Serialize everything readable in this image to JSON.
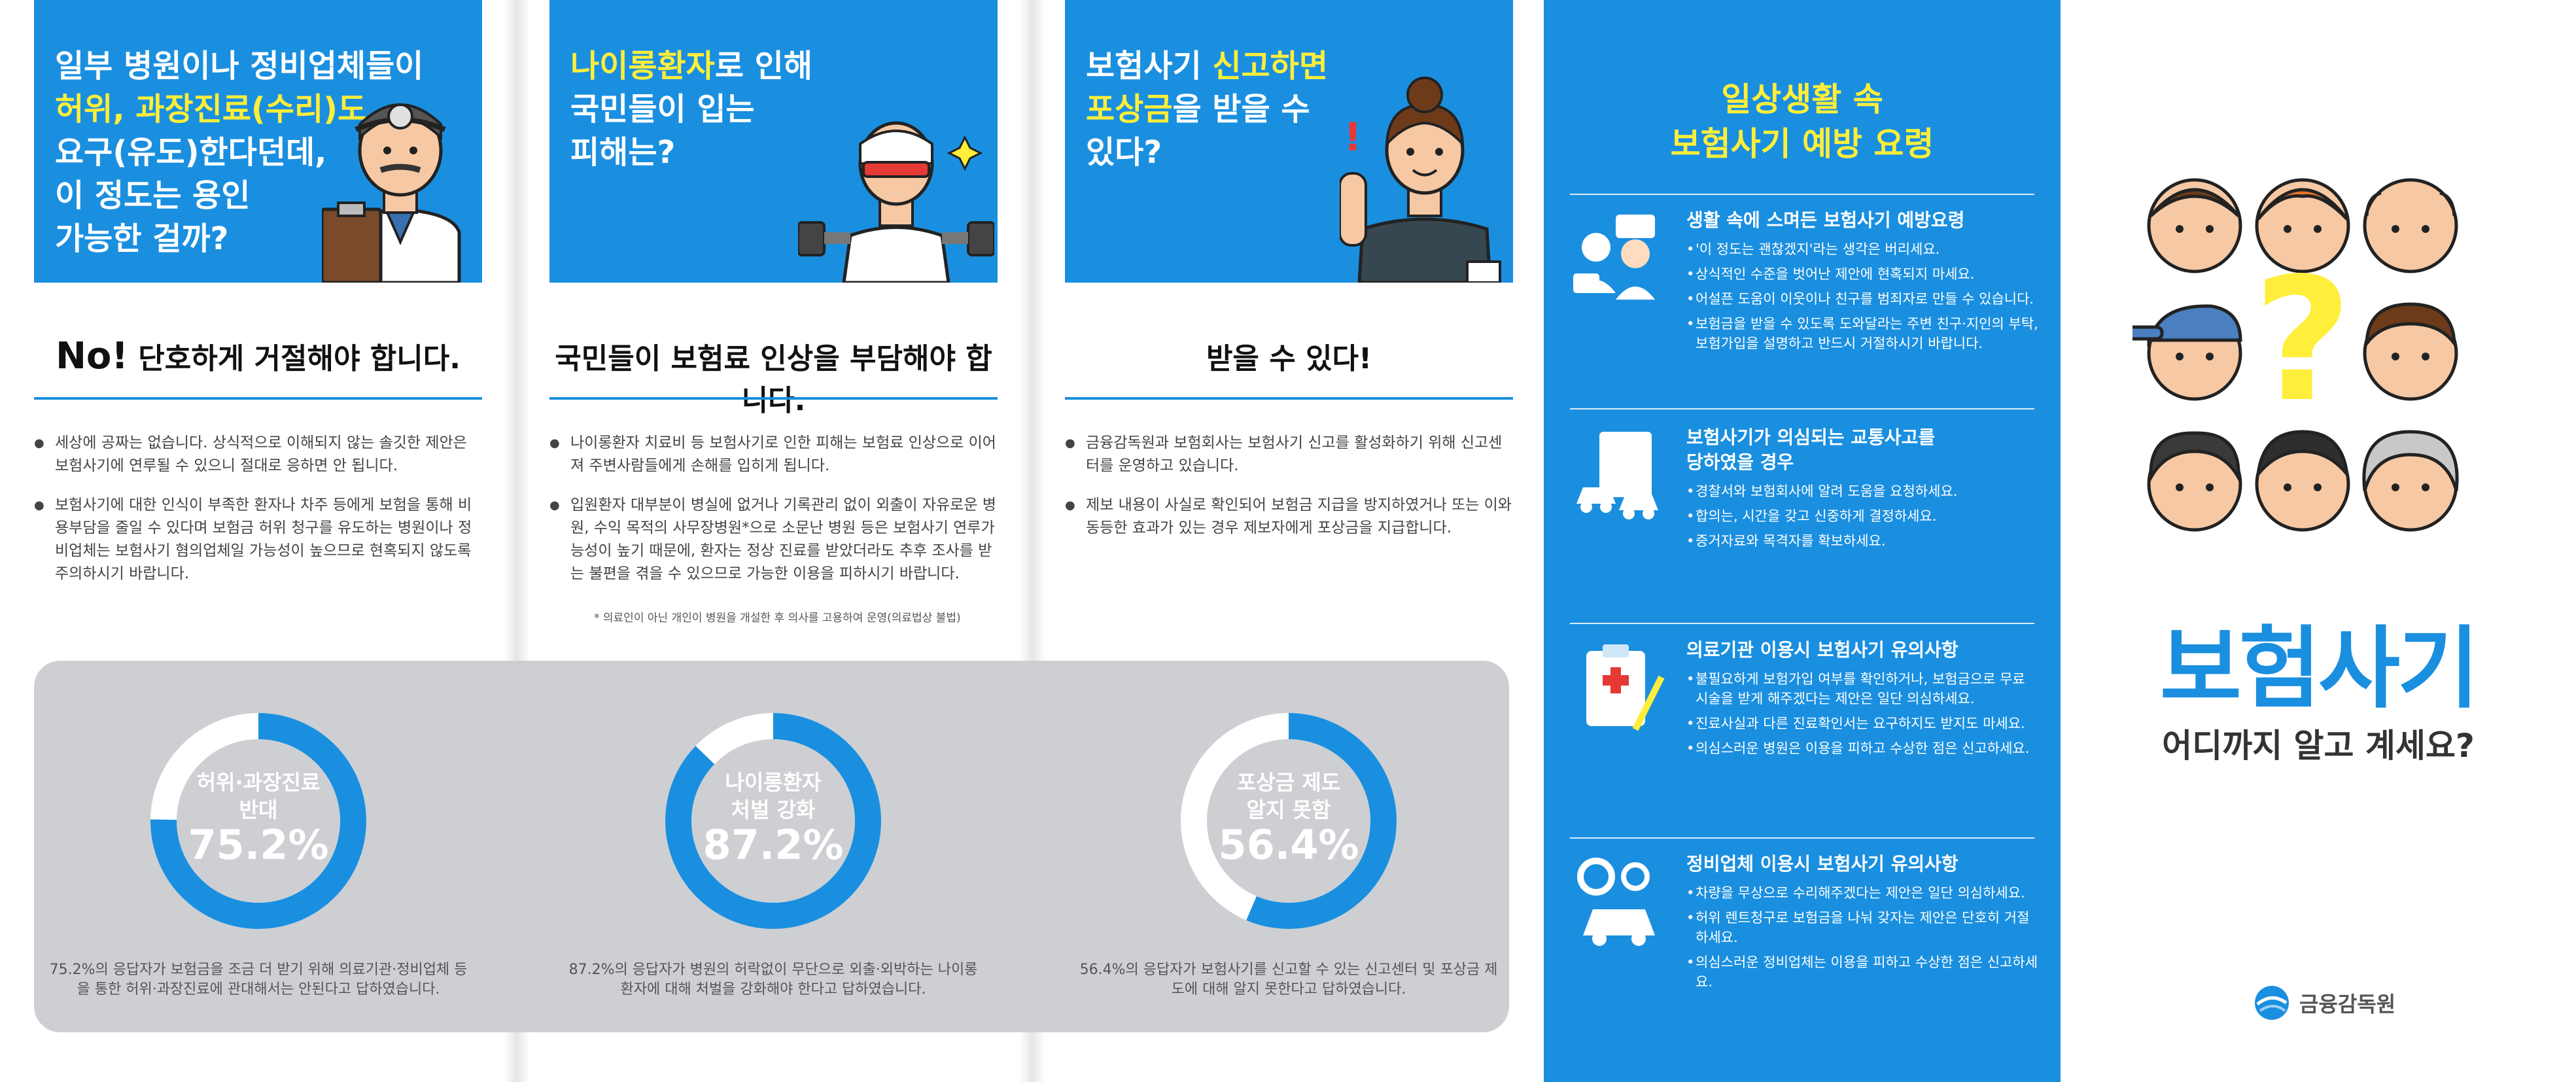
{
  "panel1": {
    "hero_title_lines": [
      "일부 병원이나 정비업체들이",
      "허위, 과장진료(수리)도",
      "요구(유도)한다던데,",
      "이 정도는 용인",
      "가능한 걸까?"
    ],
    "hero_highlight": "허위, 과장진료",
    "subtitle_no": "No!",
    "subtitle": "단호하게 거절해야 합니다.",
    "bullets": [
      "세상에 공짜는 없습니다. 상식적으로 이해되지 않는 솔깃한 제안은 보험사기에 연루될 수 있으니 절대로 응하면 안 됩니다.",
      "보험사기에 대한 인식이 부족한 환자나 차주 등에게 보험을 통해 비용부담을 줄일 수 있다며 보험금 허위 청구를 유도하는 병원이나 정비업체는 보험사기 혐의업체일 가능성이 높으므로 현혹되지 않도록 주의하시기 바랍니다."
    ]
  },
  "panel2": {
    "hero_title_lines": [
      "나이롱환자로 인해",
      "국민들이 입는",
      "피해는?"
    ],
    "hero_highlight": "나이롱환자",
    "subtitle": "국민들이 보험료 인상을 부담해야 합니다.",
    "bullets": [
      "나이롱환자 치료비 등 보험사기로 인한 피해는 보험료 인상으로 이어져 주변사람들에게 손해를 입히게 됩니다.",
      "입원환자 대부분이 병실에 없거나 기록관리 없이 외출이 자유로운 병원, 수익 목적의 사무장병원*으로 소문난 병원 등은 보험사기 연루가능성이 높기 때문에, 환자는 정상 진료를 받았더라도 추후 조사를 받는 불편을 겪을 수 있으므로 가능한 이용을 피하시기 바랍니다."
    ],
    "footnote": "* 의료인이 아닌 개인이 병원을 개설한 후 의사를 고용하여 운영(의료법상 불법)"
  },
  "panel3": {
    "hero_title_lines": [
      "보험사기 신고하면",
      "포상금을 받을 수",
      "있다?"
    ],
    "hero_highlight": "신고하면 포상금",
    "subtitle": "받을 수 있다!",
    "bullets": [
      "금융감독원과 보험회사는 보험사기 신고를 활성화하기 위해 신고센터를 운영하고 있습니다.",
      "제보 내용이 사실로 확인되어 보험금 지급을 방지하였거나 또는 이와 동등한 효과가 있는 경우 제보자에게 포상금을 지급합니다."
    ]
  },
  "stats": [
    {
      "label_lines": [
        "허위·과장진료",
        "반대"
      ],
      "pct_text": "75.2%",
      "value": 75.2,
      "caption": "75.2%의 응답자가 보험금을 조금 더 받기 위해 의료기관·정비업체 등을 통한 허위·과장진료에 관대해서는 안된다고 답하였습니다."
    },
    {
      "label_lines": [
        "나이롱환자",
        "처벌 강화"
      ],
      "pct_text": "87.2%",
      "value": 87.2,
      "caption": "87.2%의 응답자가 병원의 허락없이 무단으로 외출·외박하는 나이롱환자에 대해 처벌을 강화해야 한다고 답하였습니다."
    },
    {
      "label_lines": [
        "포상금 제도",
        "알지 못함"
      ],
      "pct_text": "56.4%",
      "value": 56.4,
      "caption": "56.4%의 응답자가 보험사기를 신고할 수 있는 신고센터 및 포상금 제도에 대해 알지 못한다고 답하였습니다."
    }
  ],
  "prevention": {
    "title_lines": [
      "일상생활 속",
      "보험사기 예방 요령"
    ],
    "sections": [
      {
        "icon": "people-talk-icon",
        "title_lines": [
          "생활 속에 스며든 보험사기 예방요령"
        ],
        "items": [
          "'이 정도는 괜찮겠지'라는 생각은 버리세요.",
          "상식적인 수준을 벗어난 제안에 현혹되지 마세요.",
          "어설픈 도움이 이웃이나 친구를 범죄자로 만들 수 있습니다.",
          "보험금을 받을 수 있도록 도와달라는 주변 친구·지인의 부탁, 보험가입을 설명하고 반드시 거절하시기 바랍니다."
        ]
      },
      {
        "icon": "car-accident-icon",
        "title_lines": [
          "보험사기가 의심되는 교통사고를",
          "당하였을 경우"
        ],
        "items": [
          "경찰서와 보험회사에 알려 도움을 요청하세요.",
          "합의는, 시간을 갖고 신중하게 결정하세요.",
          "증거자료와 목격자를 확보하세요."
        ]
      },
      {
        "icon": "medical-record-icon",
        "title_lines": [
          "의료기관 이용시 보험사기 유의사항"
        ],
        "items": [
          "불필요하게 보험가입 여부를 확인하거나, 보험금으로 무료 시술을 받게 해주겠다는 제안은 일단 의심하세요.",
          "진료사실과 다른 진료확인서는 요구하지도 받지도 마세요.",
          "의심스러운 병원은 이용을 피하고 수상한 점은 신고하세요."
        ]
      },
      {
        "icon": "car-repair-icon",
        "title_lines": [
          "정비업체 이용시 보험사기 유의사항"
        ],
        "items": [
          "차량을 무상으로 수리해주겠다는 제안은 일단 의심하세요.",
          "허위 렌트청구로 보험금을 나눠 갖자는 제안은 단호히 거절하세요.",
          "의심스러운 정비업체는 이용을 피하고 수상한 점은 신고하세요."
        ]
      }
    ]
  },
  "cover": {
    "title": "보험사기",
    "subtitle": "어디까지 알고 계세요?",
    "question_mark": "?",
    "logo_text": "금융감독원"
  },
  "colors": {
    "brand_blue": "#1a8fe0",
    "dark_blue": "#0a5fb0",
    "highlight_yellow": "#ffee3a",
    "panel_gray": "#cdcfd3"
  }
}
